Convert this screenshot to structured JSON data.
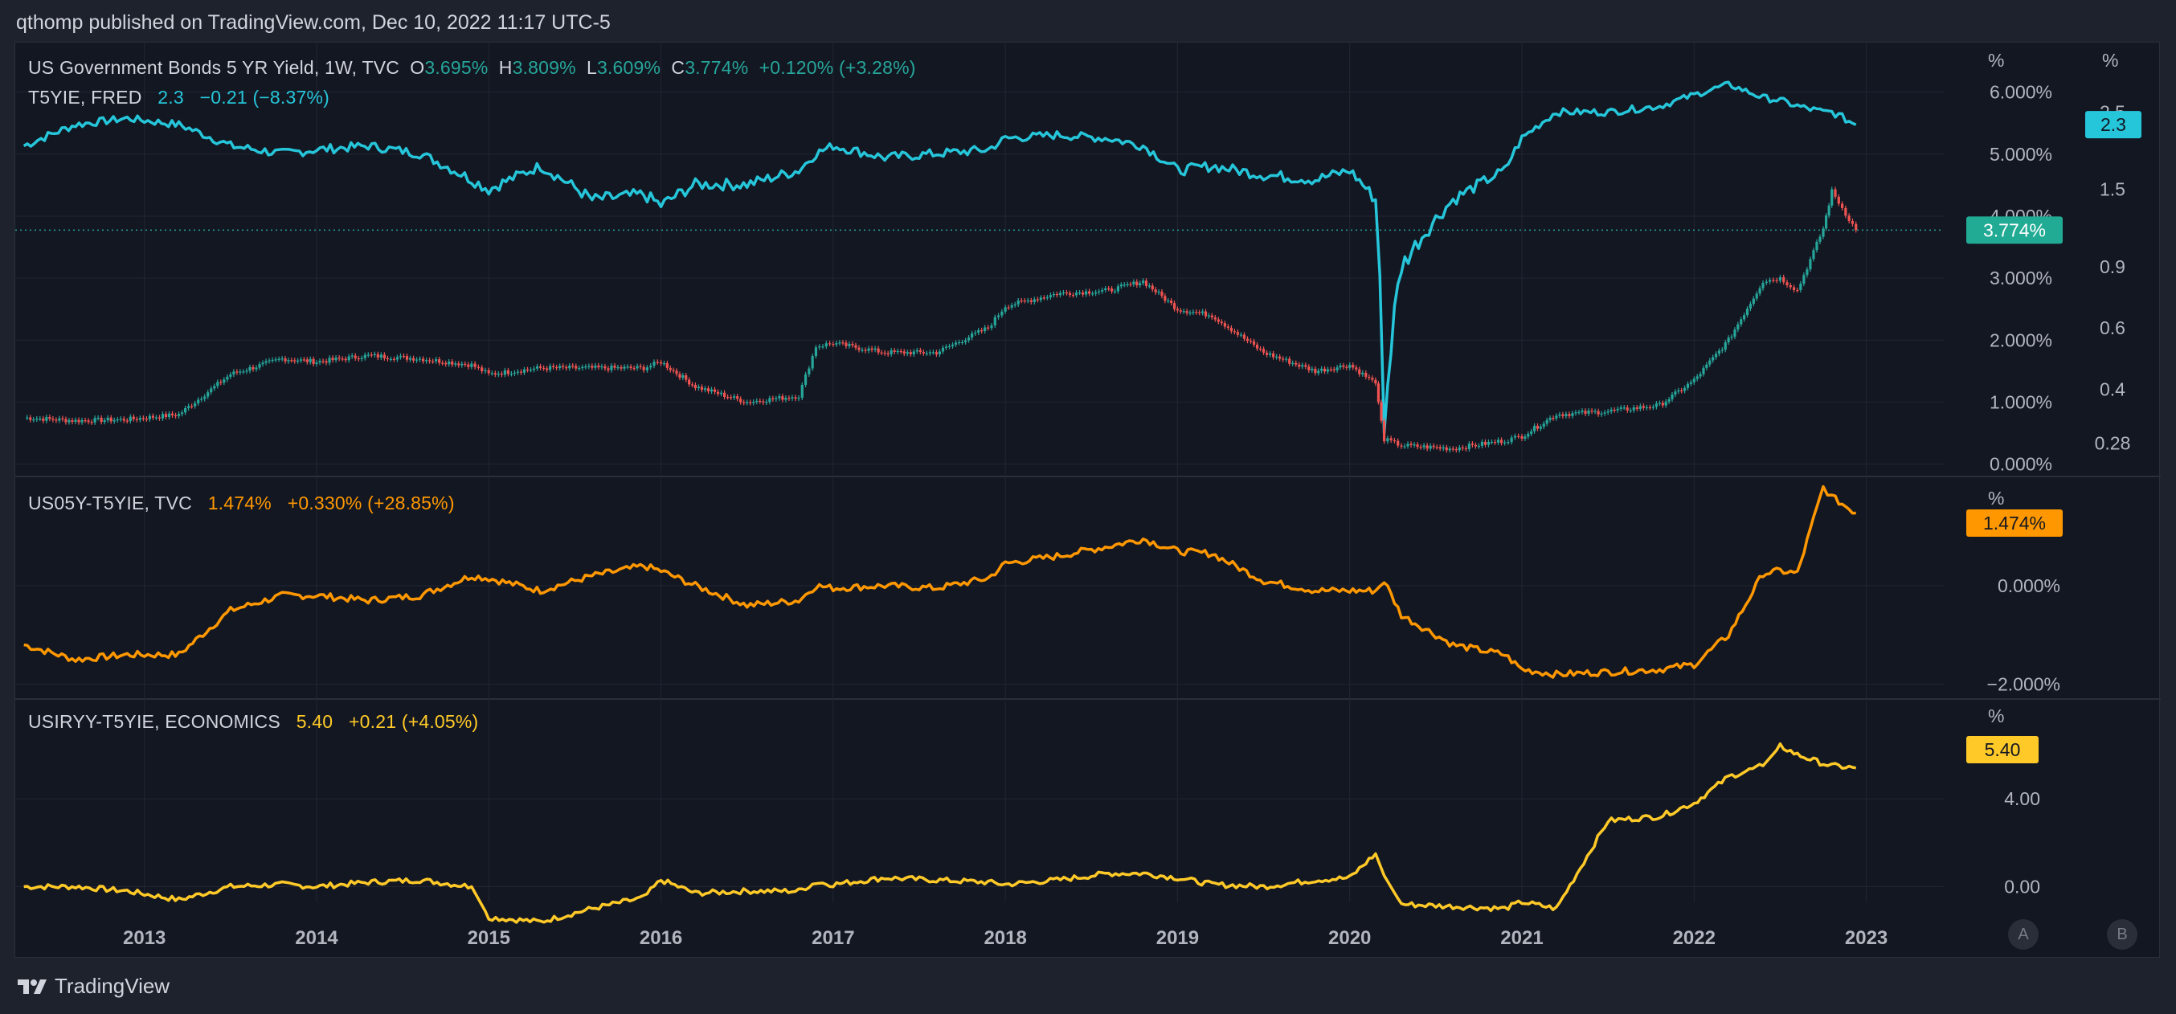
{
  "header": {
    "published": "qthomp published on TradingView.com, Dec 10, 2022 11:17 UTC-5"
  },
  "footer": {
    "brand": "TradingView"
  },
  "axis_buttons": {
    "a": "A",
    "b": "B"
  },
  "colors": {
    "background": "#131722",
    "grid": "#232632",
    "teal": "#26c6da",
    "orange": "#ff9800",
    "yellow": "#ffca28",
    "up": "#26a69a",
    "down": "#ef5350",
    "badge_green": "#22ab94"
  },
  "panes": {
    "top": {
      "legend1": {
        "name": "US Government Bonds 5 YR Yield, 1W, TVC",
        "o_label": "O",
        "o": "3.695%",
        "h_label": "H",
        "h": "3.809%",
        "l_label": "L",
        "l": "3.609%",
        "c_label": "C",
        "c": "3.774%",
        "change": "+0.120% (+3.28%)"
      },
      "legend2": {
        "name": "T5YIE, FRED",
        "value": "2.3",
        "change": "−0.21 (−8.37%)"
      },
      "right_axis_unit": "%",
      "left_axis_unit": "%",
      "right_ticks": [
        "6.000%",
        "5.000%",
        "4.000%",
        "3.000%",
        "2.000%",
        "1.000%",
        "0.000%"
      ],
      "far_ticks": [
        "2.5",
        "1.5",
        "0.9",
        "0.6",
        "0.4",
        "0.28"
      ],
      "badge_us05y": "3.774%",
      "badge_t5yie": "2.3"
    },
    "middle": {
      "legend": {
        "name": "US05Y-T5YIE, TVC",
        "value": "1.474%",
        "change": "+0.330% (+28.85%)"
      },
      "unit": "%",
      "ticks": [
        "0.000%",
        "−2.000%"
      ],
      "badge": "1.474%"
    },
    "bottom": {
      "legend": {
        "name": "USIRYY-T5YIE, ECONOMICS",
        "value": "5.40",
        "change": "+0.21 (+4.05%)"
      },
      "unit": "%",
      "ticks": [
        "4.00",
        "0.00"
      ],
      "badge": "5.40"
    }
  },
  "chart_data": {
    "type": "line",
    "x_ticks": [
      "2013",
      "2014",
      "2015",
      "2016",
      "2017",
      "2018",
      "2019",
      "2020",
      "2021",
      "2022",
      "2023"
    ],
    "series": [
      {
        "name": "US Government Bonds 5 YR Yield, 1W, TVC",
        "style": "candles",
        "pane": "top",
        "unit": "%",
        "x": [
          2012.3,
          2012.6,
          2012.9,
          2013.2,
          2013.5,
          2013.8,
          2014.0,
          2014.3,
          2014.6,
          2014.9,
          2015.0,
          2015.3,
          2015.6,
          2015.9,
          2016.0,
          2016.2,
          2016.5,
          2016.8,
          2016.9,
          2017.0,
          2017.3,
          2017.6,
          2017.9,
          2018.0,
          2018.3,
          2018.6,
          2018.8,
          2019.0,
          2019.2,
          2019.5,
          2019.8,
          2020.0,
          2020.15,
          2020.2,
          2020.3,
          2020.6,
          2020.9,
          2021.0,
          2021.2,
          2021.5,
          2021.8,
          2022.0,
          2022.2,
          2022.4,
          2022.5,
          2022.6,
          2022.75,
          2022.8,
          2022.94
        ],
        "values": [
          0.75,
          0.7,
          0.72,
          0.8,
          1.45,
          1.7,
          1.65,
          1.75,
          1.7,
          1.6,
          1.45,
          1.55,
          1.55,
          1.55,
          1.65,
          1.25,
          1.0,
          1.1,
          1.9,
          1.95,
          1.8,
          1.8,
          2.2,
          2.55,
          2.75,
          2.8,
          2.95,
          2.5,
          2.4,
          1.8,
          1.5,
          1.6,
          1.3,
          0.4,
          0.3,
          0.25,
          0.38,
          0.45,
          0.8,
          0.85,
          0.95,
          1.35,
          2.0,
          2.95,
          3.0,
          2.8,
          3.8,
          4.4,
          3.774
        ]
      },
      {
        "name": "T5YIE, FRED",
        "style": "line",
        "pane": "top",
        "unit": "%",
        "x": [
          2012.3,
          2012.6,
          2012.9,
          2013.2,
          2013.5,
          2013.8,
          2014.0,
          2014.3,
          2014.6,
          2014.9,
          2015.0,
          2015.3,
          2015.6,
          2015.9,
          2016.0,
          2016.2,
          2016.5,
          2016.8,
          2016.9,
          2017.0,
          2017.3,
          2017.6,
          2017.9,
          2018.0,
          2018.3,
          2018.6,
          2018.8,
          2019.0,
          2019.2,
          2019.5,
          2019.8,
          2020.0,
          2020.15,
          2020.2,
          2020.3,
          2020.6,
          2020.9,
          2021.0,
          2021.2,
          2021.5,
          2021.8,
          2022.0,
          2022.2,
          2022.4,
          2022.5,
          2022.6,
          2022.75,
          2022.8,
          2022.94
        ],
        "values": [
          2.0,
          2.3,
          2.4,
          2.3,
          2.0,
          1.9,
          1.95,
          2.0,
          1.9,
          1.6,
          1.5,
          1.75,
          1.4,
          1.45,
          1.35,
          1.55,
          1.55,
          1.7,
          1.9,
          2.0,
          1.85,
          1.9,
          1.95,
          2.1,
          2.15,
          2.1,
          2.0,
          1.7,
          1.75,
          1.65,
          1.6,
          1.7,
          1.4,
          0.3,
          0.9,
          1.4,
          1.7,
          2.1,
          2.5,
          2.5,
          2.6,
          2.8,
          3.0,
          2.75,
          2.7,
          2.6,
          2.5,
          2.5,
          2.3
        ]
      },
      {
        "name": "US05Y-T5YIE, TVC",
        "style": "line",
        "pane": "middle",
        "unit": "%",
        "x": [
          2012.3,
          2012.6,
          2012.9,
          2013.2,
          2013.5,
          2013.8,
          2014.0,
          2014.3,
          2014.6,
          2014.9,
          2015.0,
          2015.3,
          2015.6,
          2015.9,
          2016.0,
          2016.2,
          2016.5,
          2016.8,
          2016.9,
          2017.0,
          2017.3,
          2017.6,
          2017.9,
          2018.0,
          2018.3,
          2018.6,
          2018.8,
          2019.0,
          2019.2,
          2019.5,
          2019.8,
          2020.0,
          2020.15,
          2020.2,
          2020.3,
          2020.6,
          2020.9,
          2021.0,
          2021.2,
          2021.5,
          2021.8,
          2022.0,
          2022.2,
          2022.4,
          2022.5,
          2022.6,
          2022.75,
          2022.8,
          2022.94
        ],
        "values": [
          -1.2,
          -1.5,
          -1.4,
          -1.4,
          -0.5,
          -0.2,
          -0.2,
          -0.3,
          -0.2,
          0.2,
          0.15,
          -0.1,
          0.2,
          0.4,
          0.3,
          0.0,
          -0.4,
          -0.3,
          0.0,
          -0.05,
          0.0,
          -0.05,
          0.15,
          0.45,
          0.6,
          0.8,
          0.95,
          0.7,
          0.65,
          0.1,
          -0.1,
          -0.1,
          -0.1,
          0.1,
          -0.6,
          -1.2,
          -1.4,
          -1.7,
          -1.8,
          -1.75,
          -1.7,
          -1.6,
          -1.0,
          0.25,
          0.3,
          0.25,
          2.0,
          1.8,
          1.474
        ]
      },
      {
        "name": "USIRYY-T5YIE, ECONOMICS",
        "style": "line",
        "pane": "bottom",
        "unit": "%",
        "x": [
          2012.3,
          2012.6,
          2012.9,
          2013.2,
          2013.5,
          2013.8,
          2014.0,
          2014.3,
          2014.6,
          2014.9,
          2015.0,
          2015.3,
          2015.6,
          2015.9,
          2016.0,
          2016.2,
          2016.5,
          2016.8,
          2016.9,
          2017.0,
          2017.3,
          2017.6,
          2017.9,
          2018.0,
          2018.3,
          2018.6,
          2018.8,
          2019.0,
          2019.2,
          2019.5,
          2019.8,
          2020.0,
          2020.15,
          2020.2,
          2020.3,
          2020.6,
          2020.9,
          2021.0,
          2021.2,
          2021.5,
          2021.8,
          2022.0,
          2022.2,
          2022.4,
          2022.5,
          2022.6,
          2022.75,
          2022.8,
          2022.94
        ],
        "values": [
          0.0,
          0.0,
          -0.2,
          -0.6,
          0.0,
          0.1,
          0.0,
          0.2,
          0.3,
          0.0,
          -1.4,
          -1.6,
          -1.0,
          -0.5,
          0.3,
          -0.3,
          -0.2,
          -0.2,
          0.2,
          0.1,
          0.4,
          0.3,
          0.2,
          0.1,
          0.3,
          0.6,
          0.6,
          0.4,
          0.1,
          0.0,
          0.3,
          0.4,
          1.5,
          0.5,
          -0.8,
          -0.9,
          -1.0,
          -0.7,
          -1.0,
          3.0,
          3.2,
          3.8,
          5.0,
          5.5,
          6.4,
          6.0,
          5.6,
          5.5,
          5.4
        ]
      }
    ]
  }
}
